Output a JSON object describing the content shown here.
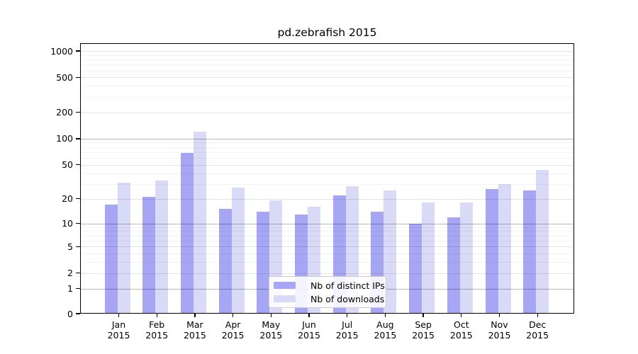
{
  "chart_data": {
    "type": "bar",
    "title": "pd.zebrafish 2015",
    "months": [
      "Jan",
      "Feb",
      "Mar",
      "Apr",
      "May",
      "Jun",
      "Jul",
      "Aug",
      "Sep",
      "Oct",
      "Nov",
      "Dec"
    ],
    "year": "2015",
    "series": [
      {
        "name": "Nb of distinct IPs",
        "color": "#a6a6f4",
        "values": [
          17,
          21,
          68,
          15,
          14,
          13,
          22,
          14,
          10,
          12,
          26,
          25
        ]
      },
      {
        "name": "Nb of downloads",
        "color": "#d9d9f8",
        "values": [
          31,
          33,
          120,
          27,
          19,
          16,
          28,
          25,
          18,
          18,
          30,
          44
        ]
      }
    ],
    "y_axis": {
      "scale": "log10(1+x)",
      "tick_labels": [
        "0",
        "1",
        "2",
        "5",
        "10",
        "20",
        "50",
        "100",
        "200",
        "500",
        "1000"
      ],
      "major_ticks": [
        0,
        1,
        2,
        5,
        10,
        20,
        50,
        100,
        200,
        500,
        1000
      ],
      "emphasized_gridlines": [
        1,
        10,
        100
      ],
      "minor_ticks": [
        3,
        4,
        6,
        7,
        8,
        9,
        30,
        40,
        60,
        70,
        80,
        90,
        300,
        400,
        600,
        700,
        800,
        900
      ],
      "ylim": [
        0,
        1230
      ]
    },
    "legend": {
      "position": "inside-bottom-center"
    },
    "grid": true
  },
  "colors": {
    "background": "#ffffff",
    "bar_ips": "#a6a6f4",
    "bar_downloads": "#d9d9f8",
    "grid_major": "rgba(0,0,0,0.10)",
    "grid_minor": "rgba(0,0,0,0.045)",
    "grid_emphasis": "rgba(0,0,0,0.28)",
    "spine": "#000000",
    "text": "#000000",
    "legend_border": "#cccccc"
  }
}
